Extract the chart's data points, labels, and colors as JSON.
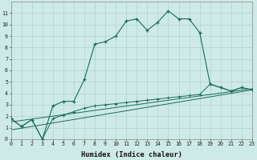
{
  "xlabel": "Humidex (Indice chaleur)",
  "x": [
    0,
    1,
    2,
    3,
    4,
    5,
    6,
    7,
    8,
    9,
    10,
    11,
    12,
    13,
    14,
    15,
    16,
    17,
    18,
    19,
    20,
    21,
    22,
    23
  ],
  "main_line": [
    1.8,
    1.1,
    1.7,
    0.0,
    2.9,
    3.3,
    3.3,
    5.2,
    8.3,
    8.5,
    9.0,
    10.3,
    10.5,
    9.5,
    10.2,
    11.2,
    10.5,
    10.5,
    9.3,
    4.8,
    4.5,
    4.2,
    4.5,
    4.3
  ],
  "lower_line1": [
    1.8,
    1.1,
    1.7,
    0.0,
    1.8,
    2.1,
    2.4,
    2.7,
    2.9,
    3.0,
    3.1,
    3.2,
    3.3,
    3.4,
    3.5,
    3.6,
    3.7,
    3.8,
    3.9,
    4.8,
    4.5,
    4.2,
    4.5,
    4.3
  ],
  "reg_line1": [
    1.5,
    4.4
  ],
  "reg_line1_x": [
    0,
    23
  ],
  "reg_line2": [
    0.8,
    4.3
  ],
  "reg_line2_x": [
    0,
    23
  ],
  "line_color": "#1a6b5a",
  "bg_color": "#ceeae6",
  "grid_color": "#aed4cf",
  "marker": "+",
  "xlim": [
    0,
    23
  ],
  "ylim": [
    0,
    12
  ],
  "xtick_labels": [
    "0",
    "1",
    "2",
    "3",
    "4",
    "5",
    "6",
    "7",
    "8",
    "9",
    "10",
    "11",
    "12",
    "13",
    "14",
    "15",
    "16",
    "17",
    "18",
    "19",
    "20",
    "21",
    "22",
    "23"
  ],
  "ytick_labels": [
    "0",
    "1",
    "2",
    "3",
    "4",
    "5",
    "6",
    "7",
    "8",
    "9",
    "10",
    "11"
  ]
}
